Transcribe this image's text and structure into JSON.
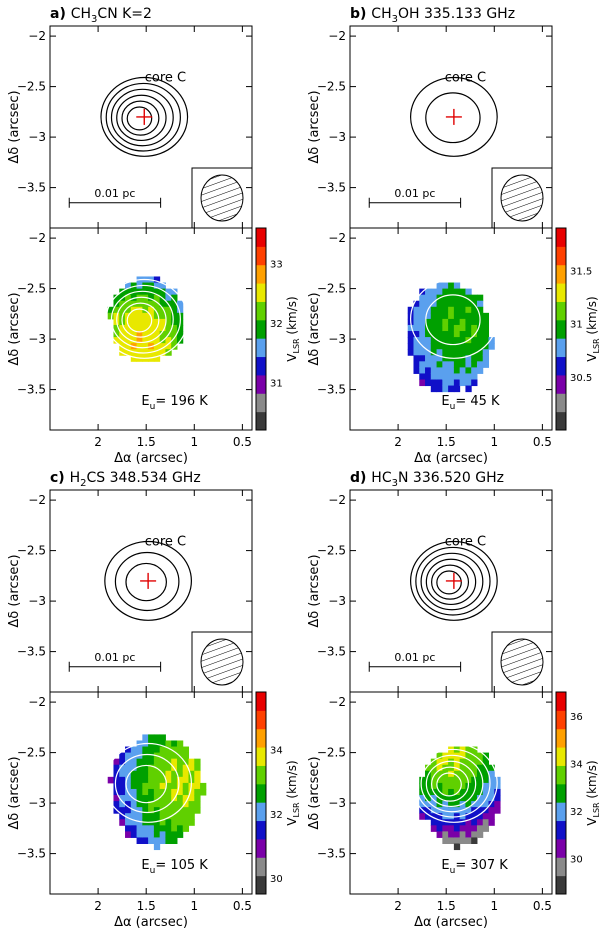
{
  "chart_data": [
    {
      "id": "a",
      "type": "heatmap",
      "title_tag": "a)",
      "title_mol": "CH",
      "title_sub": "3",
      "title_rest": "CN K=2",
      "core_label": "core C",
      "scalebar_label": "0.01 pc",
      "energy_label": "= 196 K",
      "xlabel": "Δα (arcsec)",
      "ylabel": "Δδ (arcsec)",
      "cbar_label": "V",
      "xlim": [
        2.5,
        0.4
      ],
      "ylim": [
        -3.9,
        -1.9
      ],
      "xticks": [
        "2",
        "1.5",
        "1",
        "0.5"
      ],
      "yticks": [
        "−2",
        "−2.5",
        "−3",
        "−3.5"
      ],
      "cbar_range": [
        30.2,
        33.6
      ],
      "cbar_ticks": [
        "31",
        "32",
        "33"
      ],
      "peak": [
        1.52,
        -2.8
      ],
      "vel_peak": [
        1.52,
        -2.78
      ],
      "vel_span": [
        0.38,
        0.42
      ],
      "vel_base": 32.5,
      "vel_gradient": [
        0.6,
        -1.2
      ]
    },
    {
      "id": "b",
      "type": "heatmap",
      "title_tag": "b)",
      "title_mol": "CH",
      "title_sub": "3",
      "title_rest": "OH 335.133 GHz",
      "core_label": "core C",
      "scalebar_label": "0.01 pc",
      "energy_label": "= 45 K",
      "xlabel": "Δα (arcsec)",
      "ylabel": "Δδ (arcsec)",
      "cbar_label": "V",
      "xlim": [
        2.5,
        0.4
      ],
      "ylim": [
        -3.9,
        -1.9
      ],
      "xticks": [
        "2",
        "1.5",
        "1",
        "0.5"
      ],
      "yticks": [
        "−2",
        "−2.5",
        "−3",
        "−3.5"
      ],
      "cbar_range": [
        30.0,
        31.9
      ],
      "cbar_ticks": [
        "30.5",
        "31",
        "31.5"
      ],
      "peak": [
        1.42,
        -2.8
      ],
      "vel_peak": [
        1.5,
        -2.95
      ],
      "vel_span": [
        0.45,
        0.55
      ],
      "vel_base": 31.0,
      "vel_gradient": [
        -0.3,
        0.2
      ]
    },
    {
      "id": "c",
      "type": "heatmap",
      "title_tag": "c)",
      "title_mol": "H",
      "title_sub": "2",
      "title_rest": "CS 348.534 GHz",
      "core_label": "core C",
      "scalebar_label": "0.01 pc",
      "energy_label": "= 105 K",
      "xlabel": "Δα (arcsec)",
      "ylabel": "Δδ (arcsec)",
      "cbar_label": "V",
      "xlim": [
        2.5,
        0.4
      ],
      "ylim": [
        -3.9,
        -1.9
      ],
      "xticks": [
        "2",
        "1.5",
        "1",
        "0.5"
      ],
      "yticks": [
        "−2",
        "−2.5",
        "−3",
        "−3.5"
      ],
      "cbar_range": [
        29.5,
        35.8
      ],
      "cbar_ticks": [
        "30",
        "32",
        "34"
      ],
      "peak": [
        1.48,
        -2.8
      ],
      "vel_peak": [
        1.42,
        -2.85
      ],
      "vel_span": [
        0.48,
        0.55
      ],
      "vel_base": 33.2,
      "vel_gradient": [
        -2.5,
        0.5
      ]
    },
    {
      "id": "d",
      "type": "heatmap",
      "title_tag": "d)",
      "title_mol": "HC",
      "title_sub": "3",
      "title_rest": "N 336.520 GHz",
      "core_label": "core C",
      "scalebar_label": "0.01 pc",
      "energy_label": "= 307 K",
      "xlabel": "Δα (arcsec)",
      "ylabel": "Δδ (arcsec)",
      "cbar_label": "V",
      "xlim": [
        2.5,
        0.4
      ],
      "ylim": [
        -3.9,
        -1.9
      ],
      "xticks": [
        "2",
        "1.5",
        "1",
        "0.5"
      ],
      "yticks": [
        "−2",
        "−2.5",
        "−3",
        "−3.5"
      ],
      "cbar_range": [
        28.5,
        37.0
      ],
      "cbar_ticks": [
        "30",
        "32",
        "34",
        "36"
      ],
      "peak": [
        1.42,
        -2.8
      ],
      "vel_peak": [
        1.38,
        -2.9
      ],
      "vel_span": [
        0.42,
        0.5
      ],
      "vel_base": 32.8,
      "vel_gradient": [
        1.5,
        5.0
      ]
    }
  ],
  "common": {
    "units": "(km/s)",
    "lsr_sub": "LSR",
    "energy_E": "E",
    "energy_sub": "u"
  }
}
